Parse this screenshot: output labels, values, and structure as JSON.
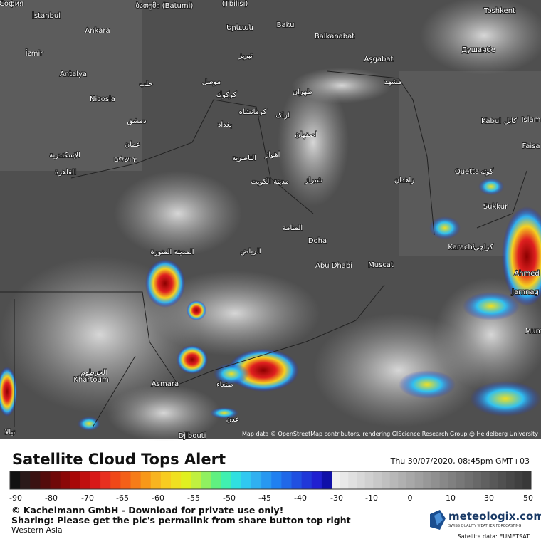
{
  "map": {
    "labels": [
      "София",
      "İstanbul",
      "Ankara",
      "İzmir",
      "Antalya",
      "Nicosia",
      "ბათუმი (Batumi)",
      "(Tbilisi)",
      "Երևան",
      "Baku",
      "Balkanabat",
      "Aşgabat",
      "Toshkent",
      "Душанбе",
      "حلب",
      "موصل",
      "كركوك",
      "تبريز",
      "طهران",
      "مشهد",
      "دمشق",
      "بغداد",
      "كرمانشاه",
      "اراک",
      "اصفهان",
      "عمان",
      "ירושלים",
      "الإسكندرية",
      "القاهرة",
      "الناصرية",
      "اهواز",
      "مدينة الكويت",
      "شيراز",
      "زاهدان",
      "Kabul",
      "کابل",
      "Islam",
      "Faisa",
      "Quetta",
      "کوټه",
      "Sukkur",
      "المنامة",
      "Doha",
      "Karachi",
      "کراچی",
      "المدينة المنورة",
      "الرياض",
      "Abu Dhabi",
      "Muscat",
      "Ahmed",
      "Jamnag",
      "Mum",
      "الخرطوم",
      "Khartoum",
      "Asmara",
      "صنعاء",
      "عدن",
      "Djibouti",
      "نيالا"
    ],
    "attribution": "Map data © OpenStreetMap contributors, rendering GIScience Research Group @ Heidelberg University"
  },
  "footer": {
    "title": "Satellite Cloud Tops Alert",
    "timestamp": "Thu 30/07/2020, 08:45pm GMT+03",
    "scale_ticks": [
      -90,
      -80,
      -70,
      -65,
      -60,
      -55,
      -50,
      -45,
      -40,
      -30,
      -10,
      0,
      10,
      30,
      50
    ],
    "copyright": "© Kachelmann GmbH - Download for private use only!",
    "sharing": "Sharing: Please get the pic's permalink from share button top right",
    "region": "Western Asia",
    "brand": "meteologix.com",
    "brand_tagline": "SWISS QUALITY WEATHER FORECASTING",
    "satellite": "Satellite data: EUMETSAT"
  }
}
